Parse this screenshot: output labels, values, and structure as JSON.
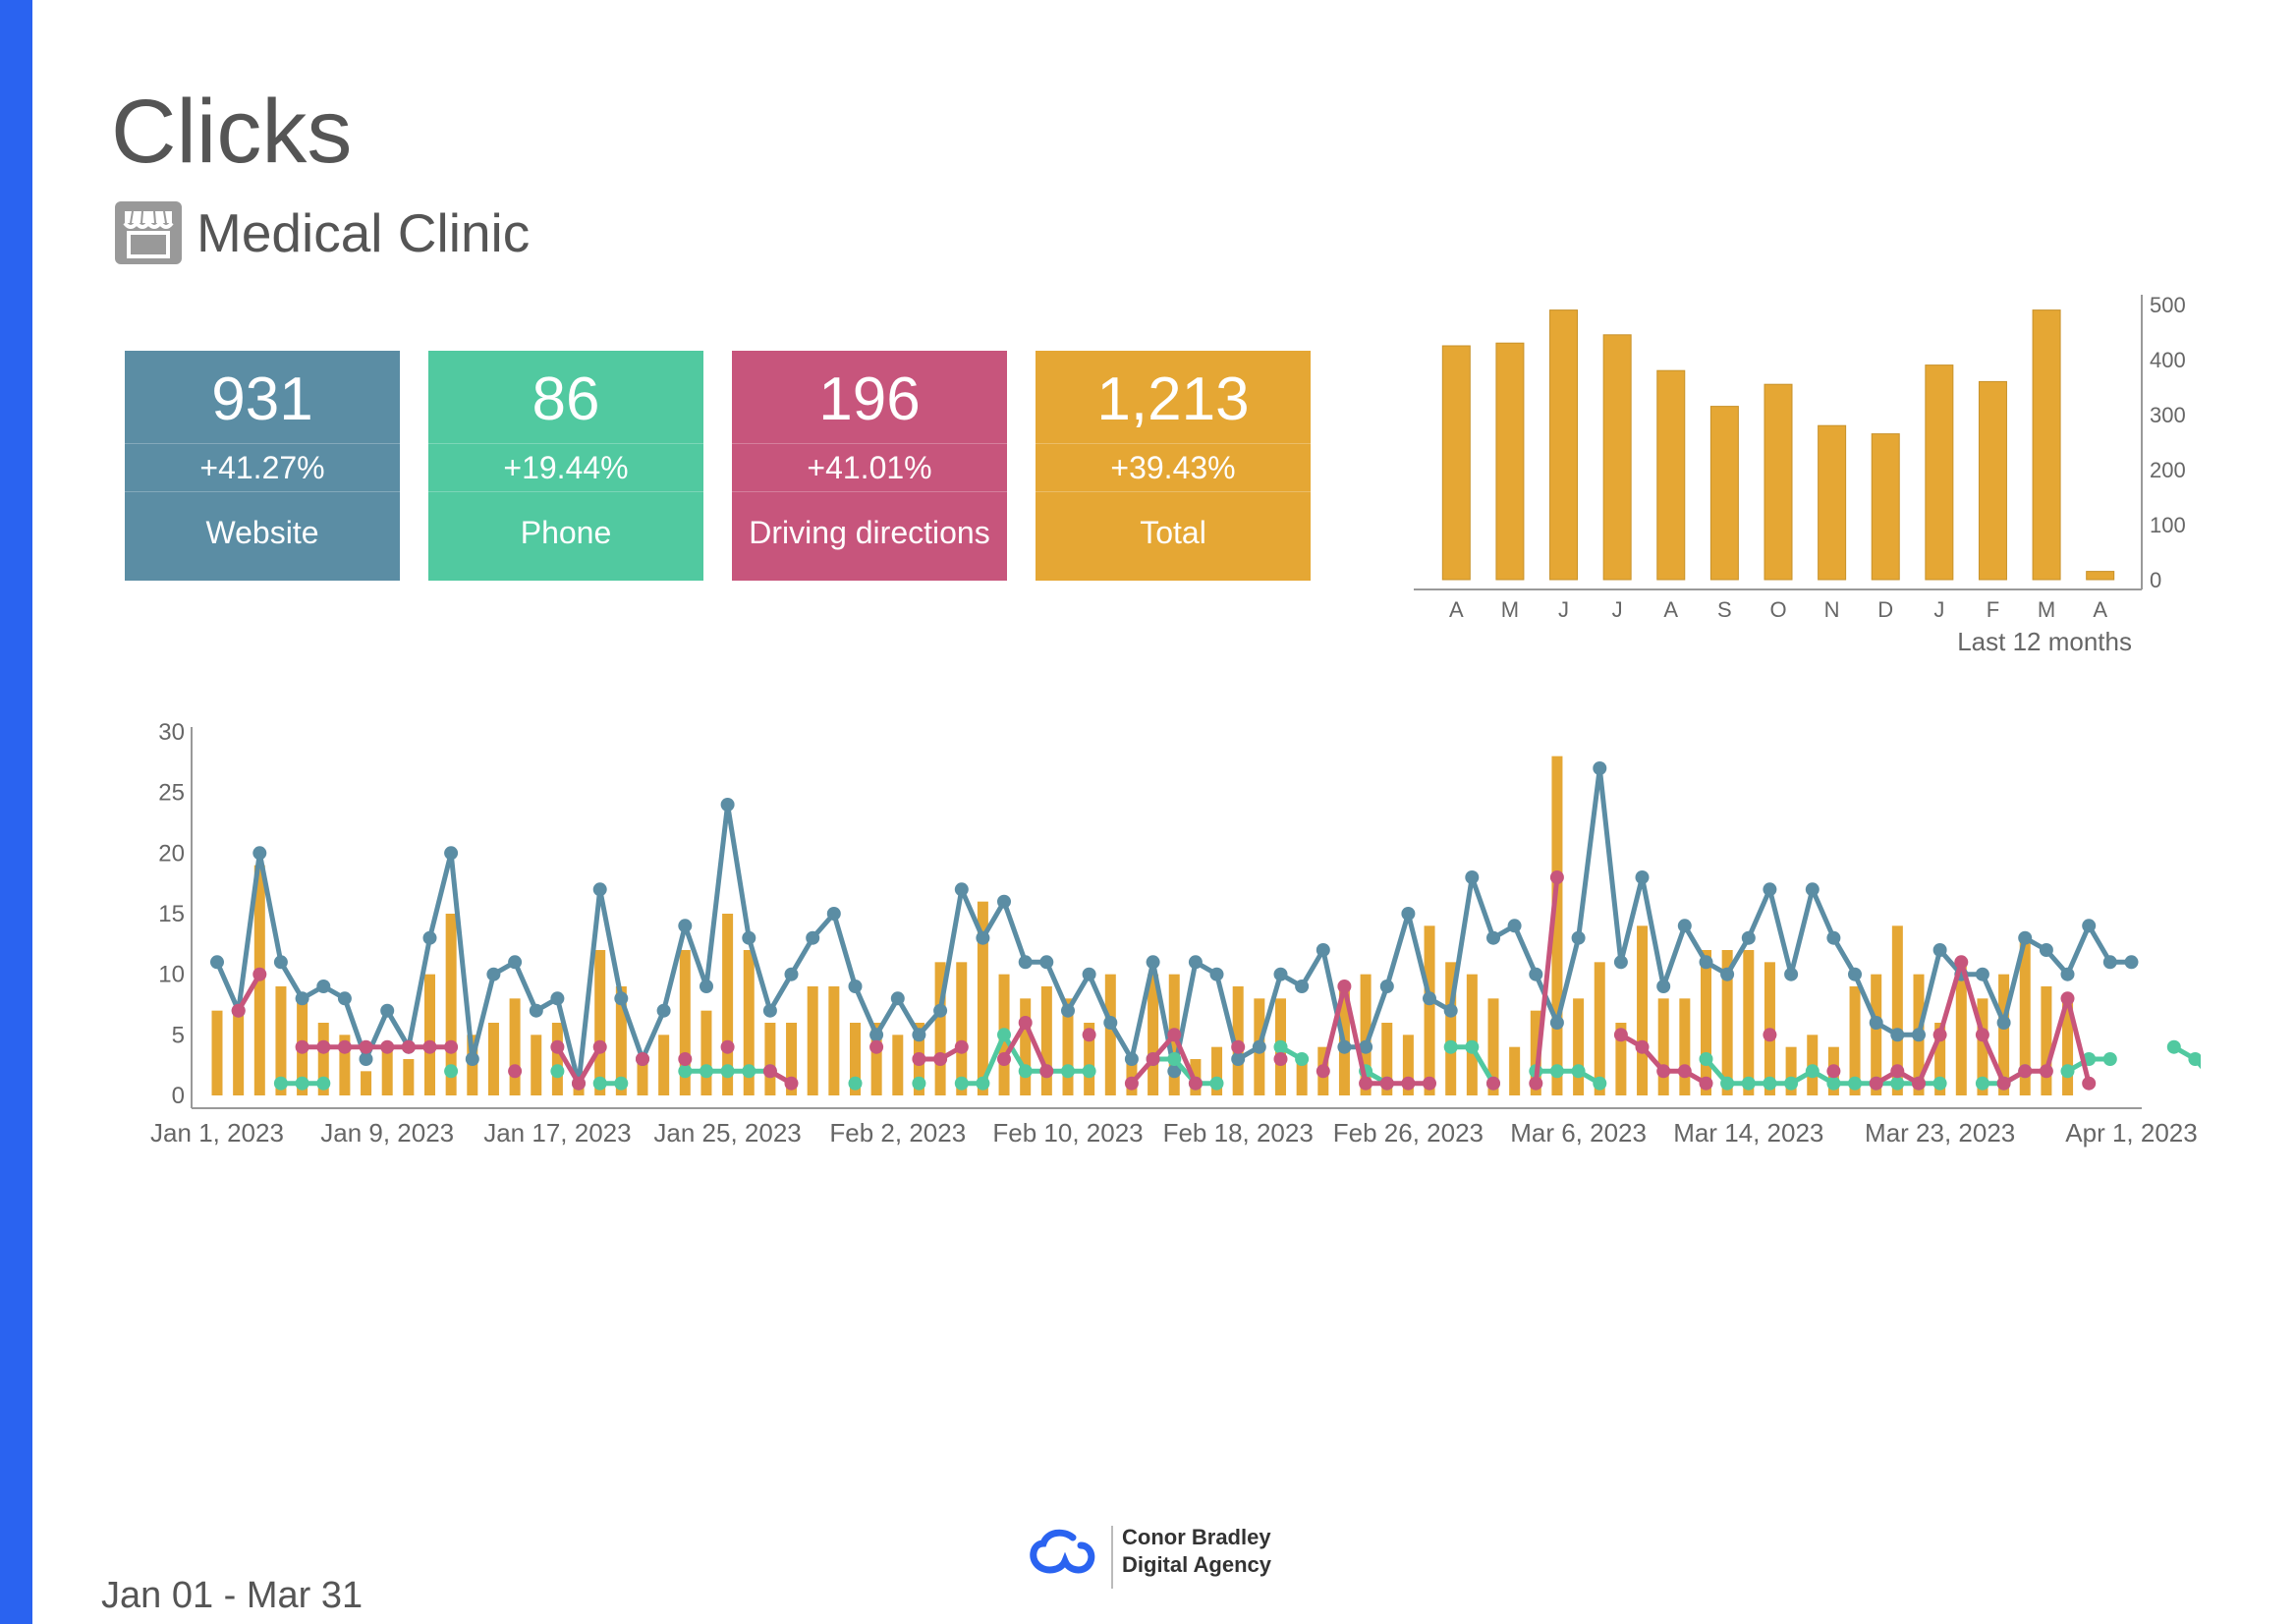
{
  "header": {
    "title": "Clicks",
    "subtitle": "Medical Clinic",
    "icon": "storefront-icon"
  },
  "colors": {
    "accent_bar": "#2A63F0",
    "website": "#5B8DA4",
    "phone": "#51C9A0",
    "directions": "#C7557C",
    "total": "#E5A734",
    "text": "#555555",
    "axis": "#999999"
  },
  "kpis": [
    {
      "value": "931",
      "change": "+41.27%",
      "label": "Website"
    },
    {
      "value": "86",
      "change": "+19.44%",
      "label": "Phone"
    },
    {
      "value": "196",
      "change": "+41.01%",
      "label": "Driving directions"
    },
    {
      "value": "1,213",
      "change": "+39.43%",
      "label": "Total"
    }
  ],
  "footer": {
    "date_range": "Jan 01 - Mar 31",
    "agency_line1": "Conor Bradley",
    "agency_line2": "Digital Agency"
  },
  "chart_data": [
    {
      "type": "bar",
      "categories": [
        "A",
        "M",
        "J",
        "J",
        "A",
        "S",
        "O",
        "N",
        "D",
        "J",
        "F",
        "M",
        "A"
      ],
      "values": [
        425,
        430,
        490,
        445,
        380,
        315,
        355,
        280,
        265,
        390,
        360,
        490,
        15
      ],
      "xlabel": "Last 12 months",
      "ylim": [
        0,
        500
      ],
      "yticks": [
        0,
        100,
        200,
        300,
        400,
        500
      ],
      "y_axis_position": "right",
      "grid": false,
      "legend": "none"
    },
    {
      "type": "line",
      "x_tick_labels": [
        "Jan 1, 2023",
        "Jan 9, 2023",
        "Jan 17, 2023",
        "Jan 25, 2023",
        "Feb 2, 2023",
        "Feb 10, 2023",
        "Feb 18, 2023",
        "Feb 26, 2023",
        "Mar 6, 2023",
        "Mar 14, 2023",
        "Mar 23, 2023",
        "Apr 1, 2023"
      ],
      "x_tick_days": [
        0,
        8,
        16,
        24,
        32,
        40,
        48,
        56,
        64,
        72,
        81,
        90
      ],
      "ylim": [
        0,
        30
      ],
      "yticks": [
        0,
        5,
        10,
        15,
        20,
        25,
        30
      ],
      "grid": false,
      "legend": "none",
      "bars_total": [
        7,
        7,
        19,
        9,
        8,
        6,
        5,
        2,
        4,
        3,
        10,
        15,
        5,
        6,
        8,
        5,
        6,
        2,
        12,
        9,
        3,
        5,
        12,
        7,
        15,
        12,
        6,
        6,
        9,
        9,
        6,
        6,
        5,
        6,
        11,
        11,
        16,
        10,
        8,
        9,
        8,
        6,
        10,
        3,
        10,
        10,
        3,
        4,
        9,
        8,
        8,
        3,
        4,
        9,
        10,
        6,
        5,
        14,
        11,
        10,
        8,
        4,
        7,
        28,
        8,
        11,
        6,
        14,
        8,
        8,
        12,
        12,
        12,
        11,
        4,
        5,
        4,
        9,
        10,
        14,
        10,
        6,
        11,
        8,
        10,
        13,
        9,
        8
      ],
      "series": [
        {
          "values": [
            11,
            7,
            20,
            11,
            8,
            9,
            8,
            3,
            7,
            4,
            13,
            20,
            3,
            10,
            11,
            7,
            8,
            1,
            17,
            8,
            3,
            7,
            14,
            9,
            24,
            13,
            7,
            10,
            13,
            15,
            9,
            5,
            8,
            5,
            7,
            17,
            13,
            16,
            11,
            11,
            7,
            10,
            6,
            3,
            11,
            2,
            11,
            10,
            3,
            4,
            10,
            9,
            12,
            4,
            4,
            9,
            15,
            8,
            7,
            18,
            13,
            14,
            10,
            6,
            13,
            27,
            11,
            18,
            9,
            14,
            11,
            10,
            13,
            17,
            10,
            17,
            13,
            10,
            6,
            5,
            5,
            12,
            10,
            10,
            6,
            13,
            12,
            10,
            14,
            11,
            11
          ]
        },
        {
          "values": [
            null,
            null,
            null,
            1,
            1,
            1,
            null,
            null,
            null,
            null,
            null,
            2,
            null,
            null,
            null,
            null,
            2,
            null,
            1,
            1,
            null,
            null,
            2,
            2,
            2,
            2,
            2,
            null,
            null,
            null,
            1,
            null,
            null,
            1,
            null,
            1,
            1,
            5,
            2,
            2,
            2,
            2,
            null,
            null,
            3,
            3,
            1,
            1,
            null,
            null,
            4,
            3,
            null,
            null,
            2,
            1,
            null,
            null,
            4,
            4,
            1,
            null,
            2,
            2,
            2,
            1,
            null,
            null,
            null,
            null,
            3,
            1,
            1,
            1,
            1,
            2,
            1,
            1,
            1,
            1,
            1,
            1,
            null,
            1,
            1,
            2,
            null,
            2,
            3,
            3,
            null,
            null,
            4,
            3,
            1
          ]
        },
        {
          "values": [
            null,
            7,
            10,
            null,
            4,
            4,
            4,
            4,
            4,
            4,
            4,
            4,
            null,
            null,
            2,
            null,
            4,
            1,
            4,
            null,
            3,
            null,
            3,
            null,
            4,
            null,
            2,
            1,
            null,
            null,
            null,
            4,
            null,
            3,
            3,
            4,
            null,
            3,
            6,
            2,
            null,
            5,
            null,
            1,
            3,
            5,
            1,
            null,
            4,
            null,
            3,
            null,
            2,
            9,
            1,
            1,
            1,
            1,
            null,
            null,
            1,
            null,
            1,
            18,
            null,
            null,
            5,
            4,
            2,
            2,
            1,
            null,
            null,
            5,
            null,
            null,
            2,
            null,
            1,
            2,
            1,
            5,
            11,
            5,
            1,
            2,
            2,
            8,
            1
          ]
        }
      ]
    }
  ]
}
